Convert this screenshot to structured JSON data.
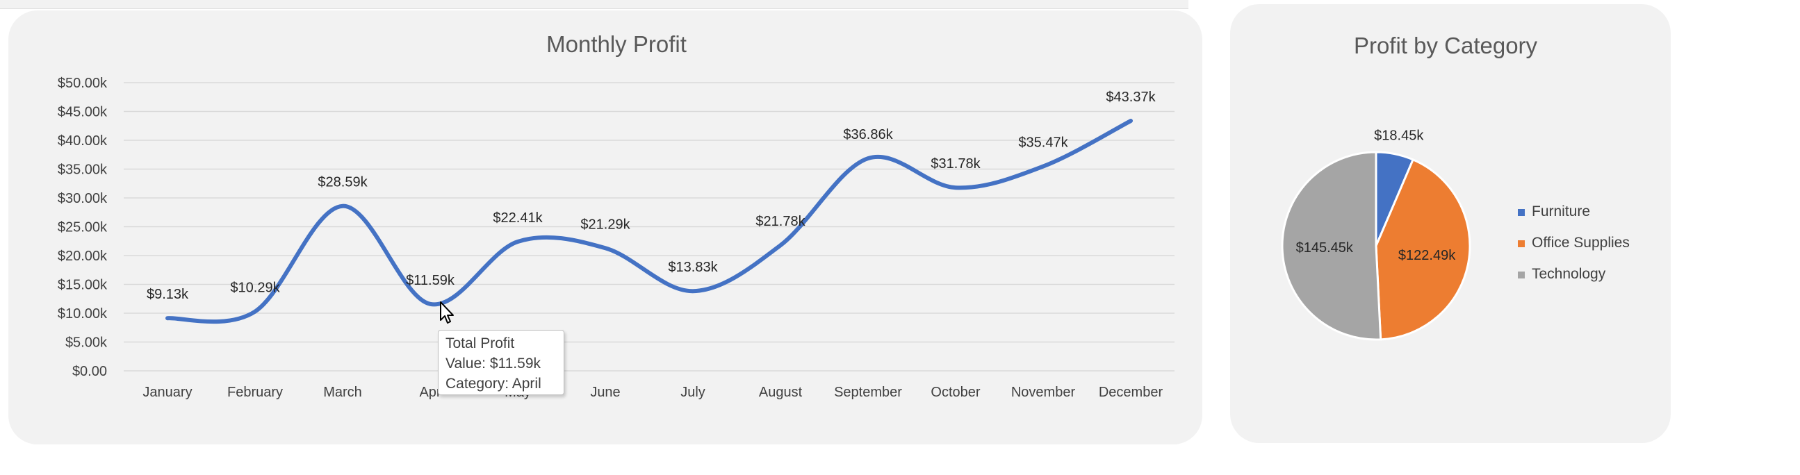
{
  "charts": [
    {
      "type": "line",
      "title": "Monthly Profit",
      "categories": [
        "January",
        "February",
        "March",
        "April",
        "May",
        "June",
        "July",
        "August",
        "September",
        "October",
        "November",
        "December"
      ],
      "values": [
        9.13,
        10.29,
        28.59,
        11.59,
        22.41,
        21.29,
        13.83,
        21.78,
        36.86,
        31.78,
        35.47,
        43.37
      ],
      "value_labels": [
        "$9.13k",
        "$10.29k",
        "$28.59k",
        "$11.59k",
        "$22.41k",
        "$21.29k",
        "$13.83k",
        "$21.78k",
        "$36.86k",
        "$31.78k",
        "$35.47k",
        "$43.37k"
      ],
      "y_ticks": [
        "$0.00",
        "$5.00k",
        "$10.00k",
        "$15.00k",
        "$20.00k",
        "$25.00k",
        "$30.00k",
        "$35.00k",
        "$40.00k",
        "$45.00k",
        "$50.00k"
      ],
      "ylim": [
        0,
        50
      ],
      "line_color": "#4472c4",
      "xlabel": "",
      "ylabel": "",
      "grid": true
    },
    {
      "type": "pie",
      "title": "Profit by Category",
      "categories": [
        "Furniture",
        "Office Supplies",
        "Technology"
      ],
      "values": [
        18.45,
        122.49,
        145.45
      ],
      "value_labels": [
        "$18.45k",
        "$122.49k",
        "$145.45k"
      ],
      "colors": [
        "#4472c4",
        "#ed7d31",
        "#a5a5a5"
      ],
      "legend": "right"
    }
  ],
  "tooltip": {
    "title": "Total Profit",
    "value": "Value: $11.59k",
    "category": "Category: April"
  },
  "tick_labels": {
    "april_partial": "Apr"
  }
}
